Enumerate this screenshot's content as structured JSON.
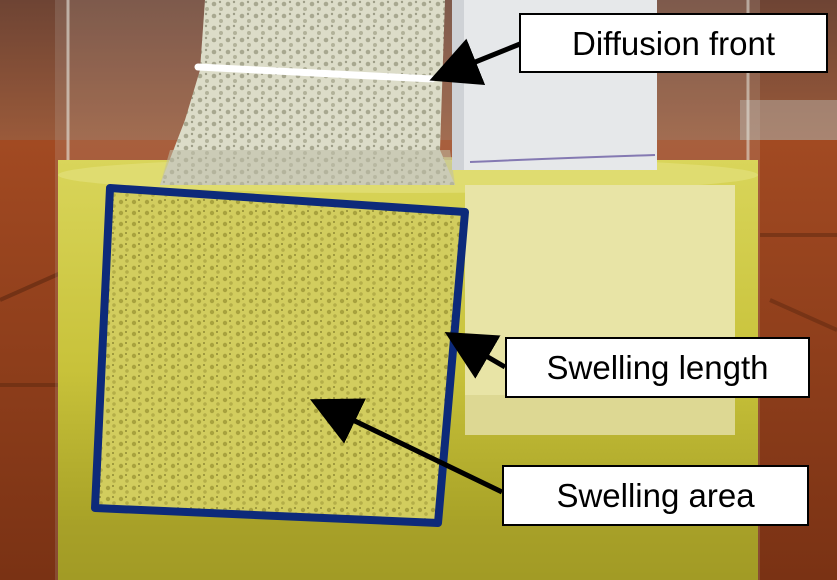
{
  "photo": {
    "subject": "foam-sample-in-oil-beaker",
    "colors": {
      "oil": "#c9c43a",
      "box_outline": "#0d2a7a",
      "diffusion_line": "#ffffff",
      "arrow": "#000000",
      "label_bg": "#ffffff",
      "label_border": "#000000"
    }
  },
  "labels": {
    "diffusion_front": "Diffusion front",
    "swelling_length": "Swelling length",
    "swelling_area": "Swelling area"
  }
}
